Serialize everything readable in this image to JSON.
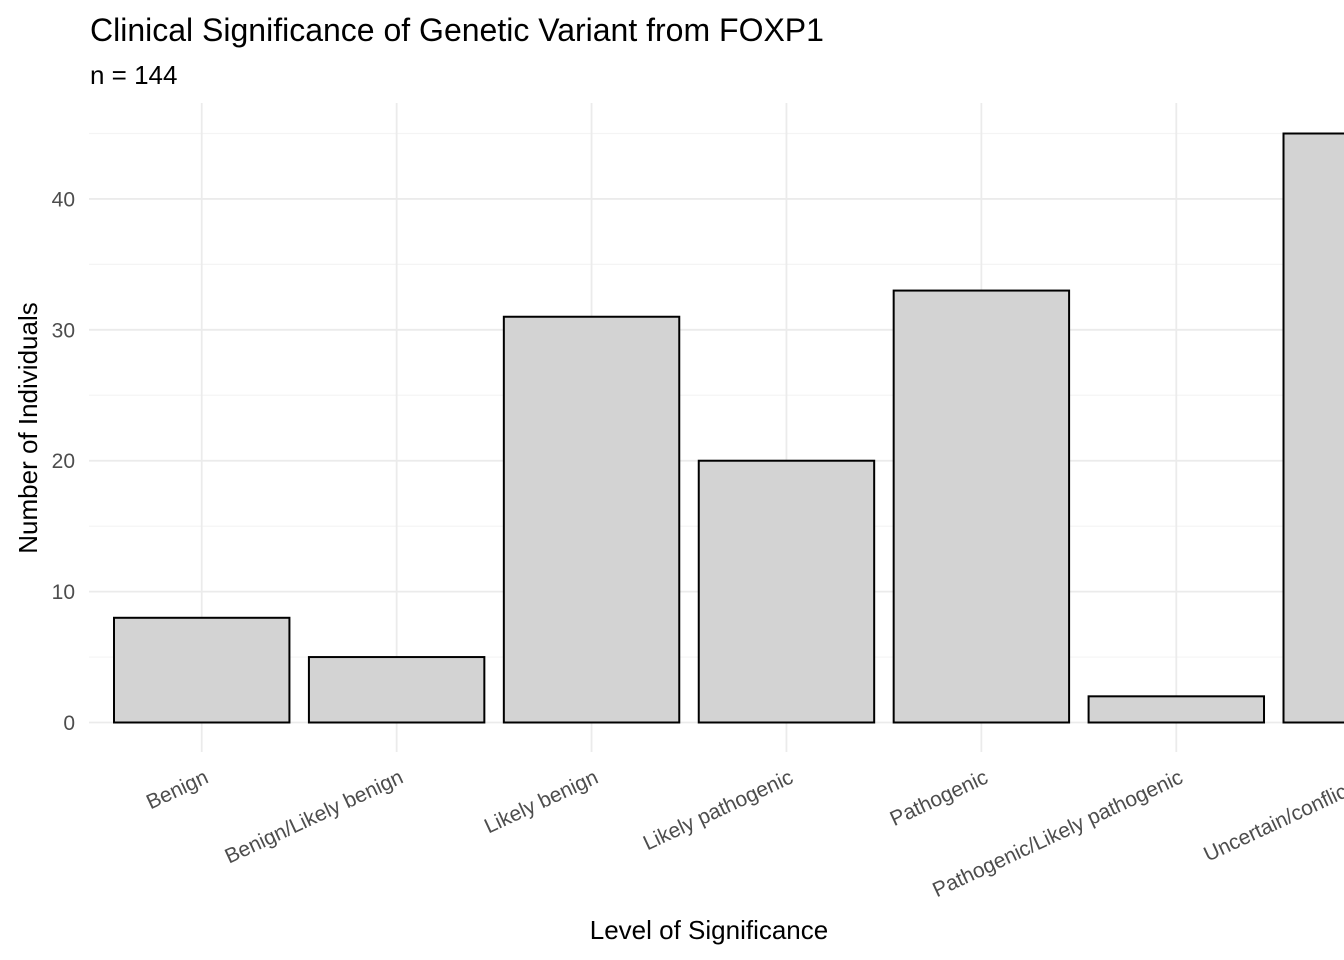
{
  "chart_data": {
    "type": "bar",
    "title": "Clinical Significance of Genetic Variant from FOXP1",
    "subtitle": "n = 144",
    "xlabel": "Level of Significance",
    "ylabel": "Number of Individuals",
    "categories": [
      "Benign",
      "Benign/Likely benign",
      "Likely benign",
      "Likely pathogenic",
      "Pathogenic",
      "Pathogenic/Likely pathogenic",
      "Uncertain/conflicting"
    ],
    "values": [
      8,
      5,
      31,
      20,
      33,
      2,
      45
    ],
    "ylim": [
      0,
      47
    ],
    "yticks": [
      0,
      10,
      20,
      30,
      40
    ],
    "grid": true,
    "legend": "none",
    "colors": {
      "bar_fill": "#d3d3d3",
      "bar_outline": "#000000",
      "grid": "#ebebeb"
    }
  }
}
